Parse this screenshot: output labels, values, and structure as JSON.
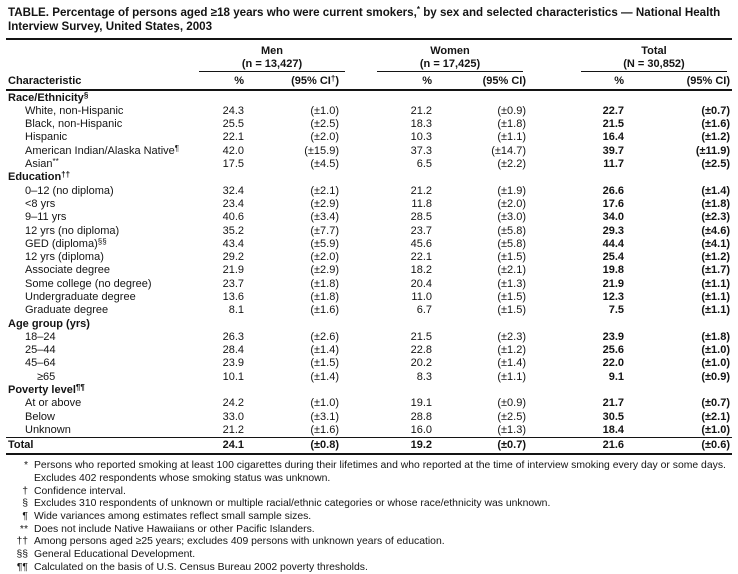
{
  "title": {
    "part1": "TABLE. Percentage of persons aged ≥18 years who were current smokers,",
    "sup": "*",
    "part2": " by sex and selected characteristics — National Health Interview Survey, United States, 2003"
  },
  "header": {
    "characteristic": "Characteristic",
    "pct": "%",
    "ci_plain": "(95% CI)",
    "ci_men_prefix": "(95% CI",
    "ci_men_sup": "†",
    "ci_men_suffix": ")",
    "groups": [
      {
        "title": "Men",
        "n": "(n = 13,427)"
      },
      {
        "title": "Women",
        "n": "(n = 17,425)"
      },
      {
        "title": "Total",
        "n": "(N = 30,852)"
      }
    ]
  },
  "table": {
    "sections": [
      {
        "header": {
          "label": "Race/Ethnicity",
          "sup": "§"
        },
        "rows": [
          {
            "label": "White, non-Hispanic",
            "cells": [
              "24.3",
              "(±1.0)",
              "21.2",
              "(±0.9)",
              "22.7",
              "(±0.7)"
            ]
          },
          {
            "label": "Black, non-Hispanic",
            "cells": [
              "25.5",
              "(±2.5)",
              "18.3",
              "(±1.8)",
              "21.5",
              "(±1.6)"
            ]
          },
          {
            "label": "Hispanic",
            "cells": [
              "22.1",
              "(±2.0)",
              "10.3",
              "(±1.1)",
              "16.4",
              "(±1.2)"
            ]
          },
          {
            "label": "American Indian/Alaska Native",
            "sup": "¶",
            "cells": [
              "42.0",
              "(±15.9)",
              "37.3",
              "(±14.7)",
              "39.7",
              "(±11.9)"
            ]
          },
          {
            "label": "Asian",
            "sup": "**",
            "cells": [
              "17.5",
              "(±4.5)",
              "6.5",
              "(±2.2)",
              "11.7",
              "(±2.5)"
            ]
          }
        ]
      },
      {
        "header": {
          "label": "Education",
          "sup": "††"
        },
        "rows": [
          {
            "label": "0–12 (no diploma)",
            "cells": [
              "32.4",
              "(±2.1)",
              "21.2",
              "(±1.9)",
              "26.6",
              "(±1.4)"
            ]
          },
          {
            "label": "<8 yrs",
            "cells": [
              "23.4",
              "(±2.9)",
              "11.8",
              "(±2.0)",
              "17.6",
              "(±1.8)"
            ]
          },
          {
            "label": "9–11 yrs",
            "cells": [
              "40.6",
              "(±3.4)",
              "28.5",
              "(±3.0)",
              "34.0",
              "(±2.3)"
            ]
          },
          {
            "label": "12 yrs (no diploma)",
            "cells": [
              "35.2",
              "(±7.7)",
              "23.7",
              "(±5.8)",
              "29.3",
              "(±4.6)"
            ]
          },
          {
            "label": "GED (diploma)",
            "sup": "§§",
            "cells": [
              "43.4",
              "(±5.9)",
              "45.6",
              "(±5.8)",
              "44.4",
              "(±4.1)"
            ]
          },
          {
            "label": "12 yrs (diploma)",
            "cells": [
              "29.2",
              "(±2.0)",
              "22.1",
              "(±1.5)",
              "25.4",
              "(±1.2)"
            ]
          },
          {
            "label": "Associate degree",
            "cells": [
              "21.9",
              "(±2.9)",
              "18.2",
              "(±2.1)",
              "19.8",
              "(±1.7)"
            ]
          },
          {
            "label": "Some college (no degree)",
            "cells": [
              "23.7",
              "(±1.8)",
              "20.4",
              "(±1.3)",
              "21.9",
              "(±1.1)"
            ]
          },
          {
            "label": "Undergraduate degree",
            "cells": [
              "13.6",
              "(±1.8)",
              "11.0",
              "(±1.5)",
              "12.3",
              "(±1.1)"
            ]
          },
          {
            "label": "Graduate degree",
            "cells": [
              "8.1",
              "(±1.6)",
              "6.7",
              "(±1.5)",
              "7.5",
              "(±1.1)"
            ]
          }
        ]
      },
      {
        "header": {
          "label": "Age group (yrs)"
        },
        "rows": [
          {
            "label": "18–24",
            "cells": [
              "26.3",
              "(±2.6)",
              "21.5",
              "(±2.3)",
              "23.9",
              "(±1.8)"
            ]
          },
          {
            "label": "25–44",
            "cells": [
              "28.4",
              "(±1.4)",
              "22.8",
              "(±1.2)",
              "25.6",
              "(±1.0)"
            ]
          },
          {
            "label": "45–64",
            "cells": [
              "23.9",
              "(±1.5)",
              "20.2",
              "(±1.4)",
              "22.0",
              "(±1.0)"
            ]
          },
          {
            "label": "≥65",
            "indent": 2,
            "cells": [
              "10.1",
              "(±1.4)",
              "8.3",
              "(±1.1)",
              "9.1",
              "(±0.9)"
            ]
          }
        ]
      },
      {
        "header": {
          "label": "Poverty level",
          "sup": "¶¶"
        },
        "rows": [
          {
            "label": "At or above",
            "cells": [
              "24.2",
              "(±1.0)",
              "19.1",
              "(±0.9)",
              "21.7",
              "(±0.7)"
            ]
          },
          {
            "label": "Below",
            "cells": [
              "33.0",
              "(±3.1)",
              "28.8",
              "(±2.5)",
              "30.5",
              "(±2.1)"
            ]
          },
          {
            "label": "Unknown",
            "cells": [
              "21.2",
              "(±1.6)",
              "16.0",
              "(±1.3)",
              "18.4",
              "(±1.0)"
            ]
          }
        ]
      },
      {
        "rows": [
          {
            "label": "Total",
            "total": true,
            "cells": [
              "24.1",
              "(±0.8)",
              "19.2",
              "(±0.7)",
              "21.6",
              "(±0.6)"
            ]
          }
        ]
      }
    ]
  },
  "footnotes": [
    {
      "marker": "*",
      "text": "Persons who reported smoking at least 100 cigarettes during their lifetimes and who reported at the time of interview smoking every day or some days. Excludes 402 respondents whose smoking status was unknown."
    },
    {
      "marker": "†",
      "text": "Confidence interval."
    },
    {
      "marker": "§",
      "text": "Excludes 310 respondents of unknown or multiple racial/ethnic categories or whose race/ethnicity was unknown."
    },
    {
      "marker": "¶",
      "text": "Wide variances among estimates reflect small sample sizes."
    },
    {
      "marker": "**",
      "text": "Does not include Native Hawaiians or other Pacific Islanders."
    },
    {
      "marker": "††",
      "text": "Among persons aged ≥25 years; excludes 409 persons with unknown years of education."
    },
    {
      "marker": "§§",
      "text": "General Educational Development."
    },
    {
      "marker": "¶¶",
      "text": "Calculated on the basis of U.S. Census Bureau 2002 poverty thresholds."
    }
  ]
}
